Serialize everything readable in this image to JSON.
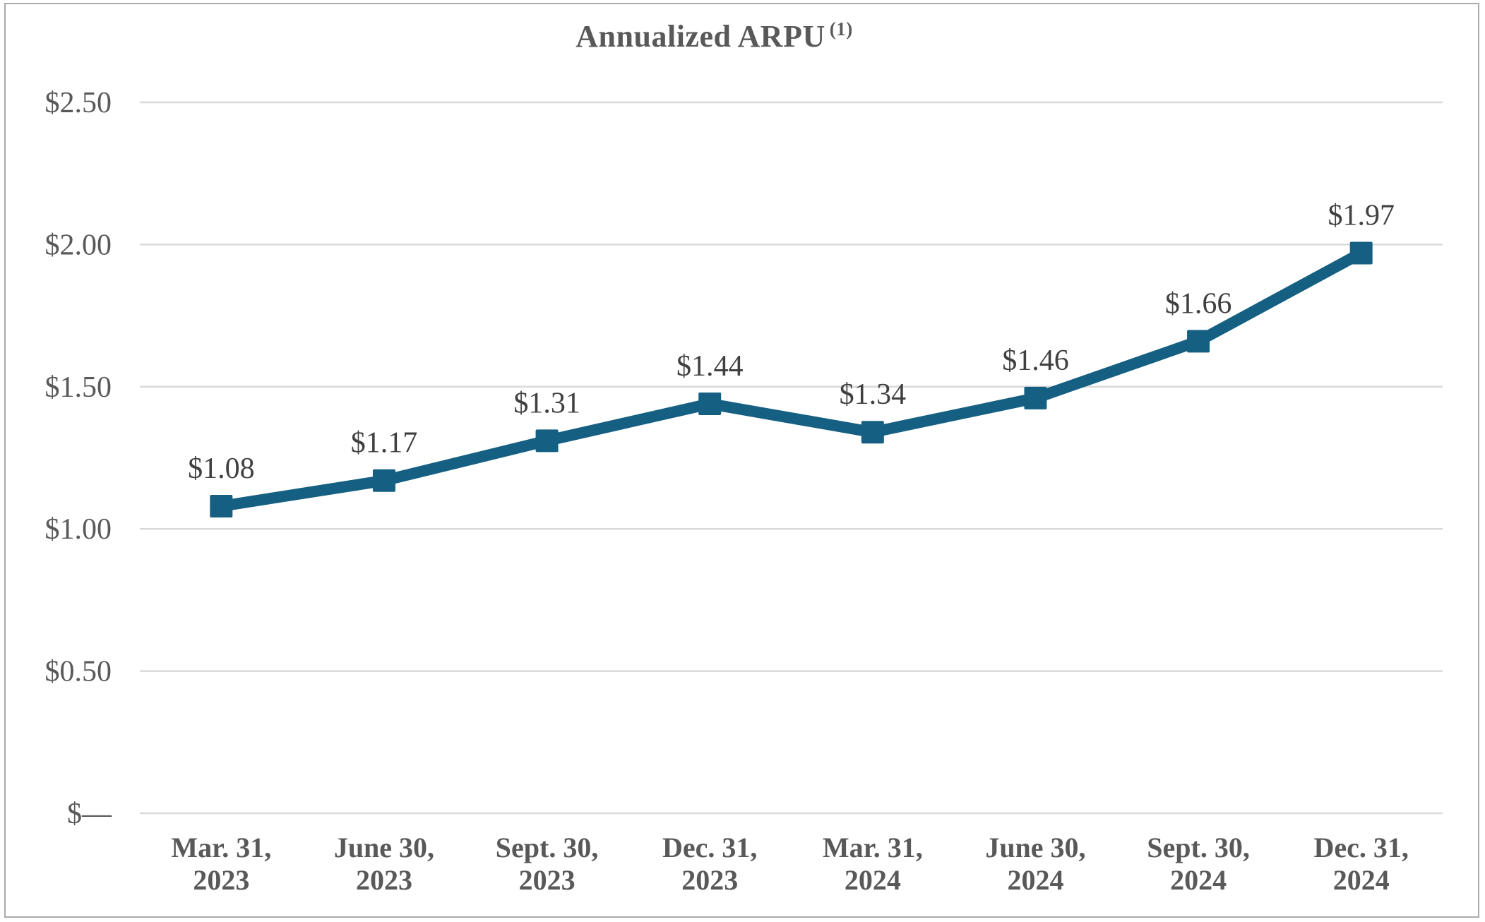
{
  "page": {
    "title_main": "Annualized ARPU",
    "title_superscript": "(1)"
  },
  "chart_data": {
    "type": "line",
    "title": "Annualized ARPU (1)",
    "categories": [
      "Mar. 31, 2023",
      "June 30, 2023",
      "Sept. 30, 2023",
      "Dec. 31, 2023",
      "Mar. 31, 2024",
      "June 30, 2024",
      "Sept. 30, 2024",
      "Dec. 31, 2024"
    ],
    "series": [
      {
        "name": "Annualized ARPU",
        "values": [
          1.08,
          1.17,
          1.31,
          1.44,
          1.34,
          1.46,
          1.66,
          1.97
        ],
        "data_labels": [
          "$1.08",
          "$1.17",
          "$1.31",
          "$1.44",
          "$1.34",
          "$1.46",
          "$1.66",
          "$1.97"
        ]
      }
    ],
    "y_ticks": [
      {
        "value": 2.5,
        "label": "$2.50"
      },
      {
        "value": 2.0,
        "label": "$2.00"
      },
      {
        "value": 1.5,
        "label": "$1.50"
      },
      {
        "value": 1.0,
        "label": "$1.00"
      },
      {
        "value": 0.5,
        "label": "$0.50"
      },
      {
        "value": 0.0,
        "label": "$—"
      }
    ],
    "xlabel": "",
    "ylabel": "",
    "ylim": [
      0,
      2.5
    ],
    "grid": "horizontal",
    "legend": "none",
    "marker_shape": "square",
    "colors": {
      "line": "#156082",
      "marker": "#156082",
      "gridline": "#d9d9d9",
      "axis_text": "#595959",
      "data_label_text": "#404040",
      "title_text": "#595959",
      "border": "#ababab"
    }
  }
}
